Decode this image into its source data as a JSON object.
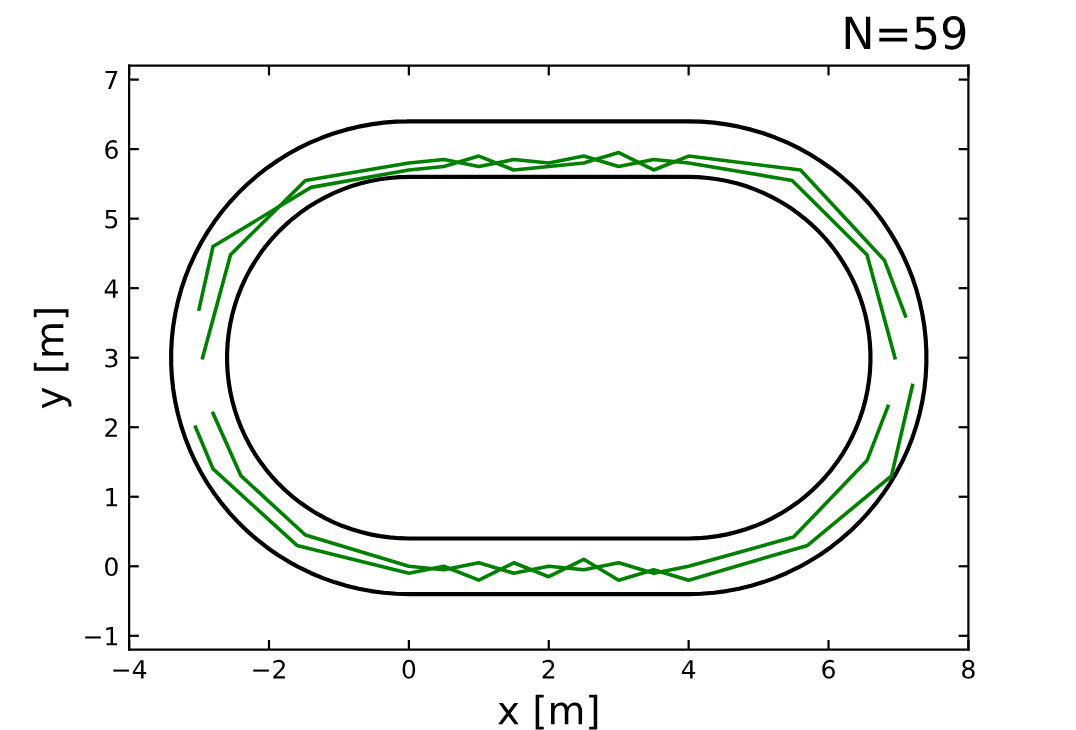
{
  "chart_data": {
    "type": "line",
    "title": "N=59",
    "xlabel": "x [m]",
    "ylabel": "y [m]",
    "xlim": [
      -4,
      8
    ],
    "ylim": [
      -1.2,
      7.2
    ],
    "xticks": [
      {
        "value": -4,
        "label": "−4"
      },
      {
        "value": -2,
        "label": "−2"
      },
      0,
      2,
      4,
      6,
      8
    ],
    "yticks": [
      {
        "value": -1,
        "label": "−1"
      },
      0,
      1,
      2,
      3,
      4,
      5,
      6,
      7
    ],
    "grid": false,
    "legend": false,
    "marker": "none",
    "line_style": "solid",
    "series": [
      {
        "color": "#008000",
        "x": [
          -2.95,
          -2.55,
          -1.48,
          0,
          0.5,
          1,
          1.5,
          2,
          2.5,
          3,
          3.5,
          4,
          5.48,
          6.55,
          6.95
        ],
        "values": [
          3.0,
          4.48,
          5.55,
          5.8,
          5.85,
          5.75,
          5.85,
          5.8,
          5.9,
          5.75,
          5.85,
          5.8,
          5.55,
          4.48,
          3.0
        ]
      },
      {
        "color": "#008000",
        "x": [
          -2.8,
          -2.4,
          -1.48,
          0,
          0.5,
          1,
          1.5,
          2,
          2.5,
          3,
          3.5,
          4,
          5.5,
          6.55,
          6.85
        ],
        "values": [
          2.2,
          1.3,
          0.45,
          0.0,
          -0.05,
          0.05,
          -0.1,
          0.0,
          -0.05,
          0.05,
          -0.1,
          0.0,
          0.42,
          1.52,
          2.3
        ]
      },
      {
        "color": "#008000",
        "x": [
          -3.0,
          -2.8,
          -1.4,
          0,
          0.5,
          1,
          1.5,
          2,
          2.5,
          3,
          3.5,
          4,
          5.6,
          6.8,
          7.1
        ],
        "values": [
          3.7,
          4.6,
          5.45,
          5.7,
          5.75,
          5.9,
          5.7,
          5.75,
          5.8,
          5.95,
          5.7,
          5.9,
          5.7,
          4.4,
          3.6
        ]
      },
      {
        "color": "#008000",
        "x": [
          -3.05,
          -2.8,
          -1.6,
          0,
          0.5,
          1,
          1.5,
          2,
          2.5,
          3,
          3.5,
          4,
          5.7,
          6.9,
          7.2
        ],
        "values": [
          2.0,
          1.4,
          0.3,
          -0.1,
          0.0,
          -0.2,
          0.05,
          -0.15,
          0.1,
          -0.2,
          -0.05,
          -0.2,
          0.3,
          1.3,
          2.6
        ]
      }
    ]
  }
}
